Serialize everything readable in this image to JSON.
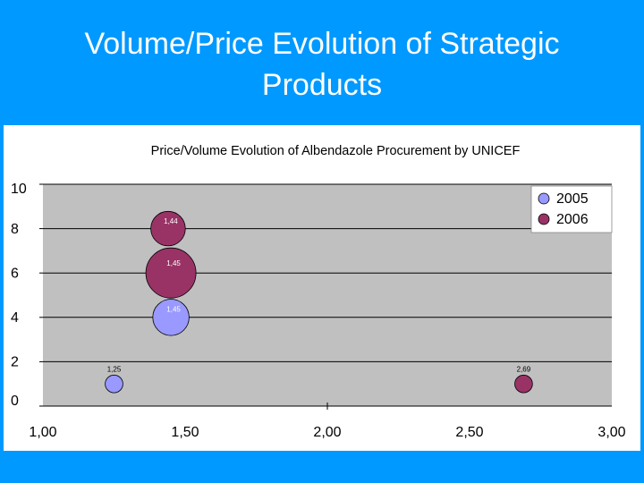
{
  "slide": {
    "title_line1": "Volume/Price Evolution of Strategic",
    "title_line2": "Products"
  },
  "colors": {
    "background": "#0099FF",
    "plot_area": "#C0C0C0",
    "series_2005": "#9999FF",
    "series_2006": "#993366"
  },
  "chart_data": {
    "type": "bubble",
    "title": "Price/Volume Evolution of Albendazole Procurement by UNICEF",
    "xlim": [
      1.0,
      3.0
    ],
    "ylim": [
      0,
      10
    ],
    "x_ticks": [
      "1,00",
      "1,50",
      "2,00",
      "2,50",
      "3,00"
    ],
    "y_ticks": [
      "0",
      "2",
      "4",
      "6",
      "8",
      "10"
    ],
    "grid": "horizontal",
    "legend": "top-right",
    "series": [
      {
        "name": "2005",
        "color": "#9999FF",
        "points": [
          {
            "x": 1.25,
            "y": 1.0,
            "size": 1.0,
            "label": "1,25"
          },
          {
            "x": 1.45,
            "y": 4.0,
            "size": 4.2,
            "label": "1,45"
          }
        ]
      },
      {
        "name": "2006",
        "color": "#993366",
        "points": [
          {
            "x": 1.45,
            "y": 6.0,
            "size": 8.0,
            "label": "1,45"
          },
          {
            "x": 1.44,
            "y": 8.0,
            "size": 3.8,
            "label": "1,44"
          },
          {
            "x": 2.69,
            "y": 1.0,
            "size": 1.0,
            "label": "2,69"
          }
        ]
      }
    ]
  }
}
